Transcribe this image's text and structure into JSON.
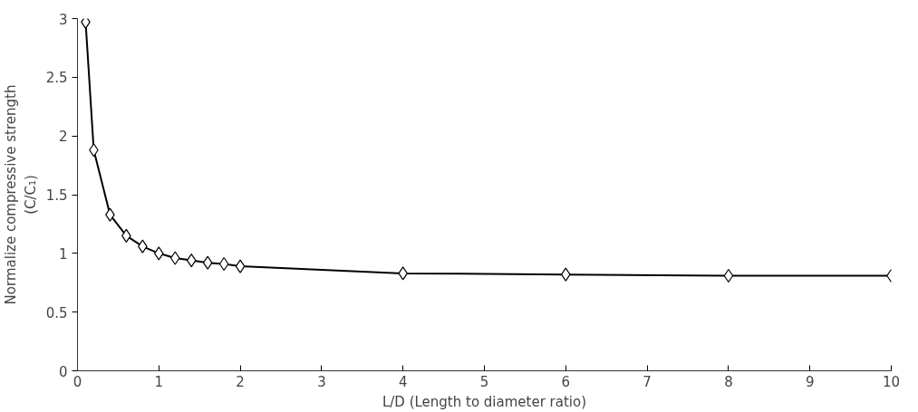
{
  "chart_data": {
    "type": "line",
    "xlabel": "L/D (Length to diameter ratio)",
    "ylabel": "Normalize compressive strength\n(C/C₁)",
    "x": [
      0.1,
      0.2,
      0.4,
      0.6,
      0.8,
      1.0,
      1.2,
      1.4,
      1.6,
      1.8,
      2.0,
      4.0,
      6.0,
      8.0,
      10.0
    ],
    "series": [
      {
        "color": "#000000",
        "values": [
          2.97,
          1.88,
          1.33,
          1.15,
          1.06,
          1.0,
          0.96,
          0.94,
          0.92,
          0.91,
          0.89,
          0.83,
          0.82,
          0.81,
          0.81
        ]
      }
    ],
    "xlim": [
      0,
      10
    ],
    "ylim": [
      0,
      3
    ],
    "xticks": [
      0,
      1,
      2,
      3,
      4,
      5,
      6,
      7,
      8,
      9,
      10
    ],
    "yticks": [
      0,
      0.5,
      1,
      1.5,
      2,
      2.5,
      3
    ],
    "marker": "diamond",
    "line_style": "solid",
    "grid": false
  }
}
